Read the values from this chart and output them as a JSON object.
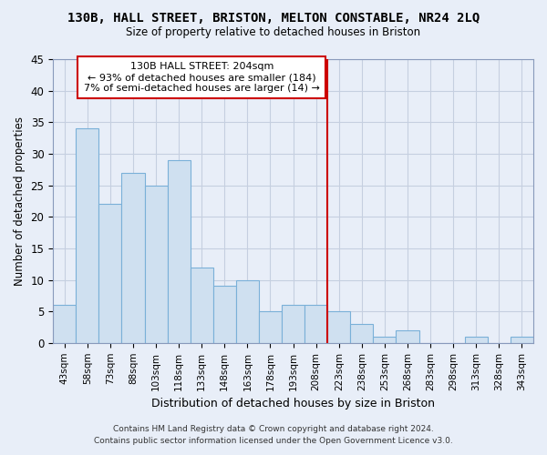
{
  "title": "130B, HALL STREET, BRISTON, MELTON CONSTABLE, NR24 2LQ",
  "subtitle": "Size of property relative to detached houses in Briston",
  "xlabel": "Distribution of detached houses by size in Briston",
  "ylabel": "Number of detached properties",
  "bar_labels": [
    "43sqm",
    "58sqm",
    "73sqm",
    "88sqm",
    "103sqm",
    "118sqm",
    "133sqm",
    "148sqm",
    "163sqm",
    "178sqm",
    "193sqm",
    "208sqm",
    "223sqm",
    "238sqm",
    "253sqm",
    "268sqm",
    "283sqm",
    "298sqm",
    "313sqm",
    "328sqm",
    "343sqm"
  ],
  "bar_values": [
    6,
    34,
    22,
    27,
    25,
    29,
    12,
    9,
    10,
    5,
    6,
    6,
    5,
    3,
    1,
    2,
    0,
    0,
    1,
    0,
    1
  ],
  "bar_color": "#cfe0f0",
  "bar_edge_color": "#7ab0d8",
  "vline_x": 11.5,
  "vline_color": "#cc0000",
  "annotation_title": "130B HALL STREET: 204sqm",
  "annotation_line1": "← 93% of detached houses are smaller (184)",
  "annotation_line2": "7% of semi-detached houses are larger (14) →",
  "ylim": [
    0,
    45
  ],
  "yticks": [
    0,
    5,
    10,
    15,
    20,
    25,
    30,
    35,
    40,
    45
  ],
  "footer_line1": "Contains HM Land Registry data © Crown copyright and database right 2024.",
  "footer_line2": "Contains public sector information licensed under the Open Government Licence v3.0.",
  "bg_color": "#e8eef8",
  "plot_bg_color": "#e8eef8",
  "grid_color": "#c5cfe0"
}
